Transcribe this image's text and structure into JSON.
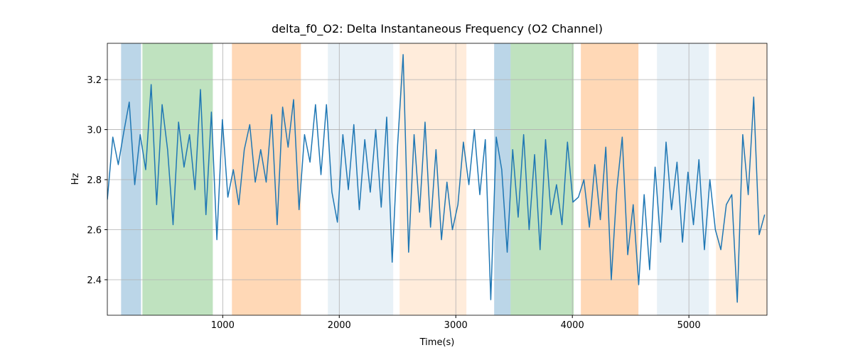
{
  "chart_data": {
    "type": "line",
    "title": "delta_f0_O2: Delta Instantaneous Frequency (O2 Channel)",
    "x_label": "Time(s)",
    "y_label": "Hz",
    "xlim": [
      10,
      5670
    ],
    "ylim": [
      2.258,
      3.345
    ],
    "xticks": [
      1000,
      2000,
      3000,
      4000,
      5000
    ],
    "yticks": [
      2.4,
      2.6,
      2.8,
      {
        "value": 3,
        "label": "3.0"
      },
      3.2
    ],
    "grid": true,
    "spans": [
      {
        "start": 128,
        "end": 299,
        "color": "#1f77b4",
        "opacity": 0.3
      },
      {
        "start": 311,
        "end": 915,
        "color": "#2ca02c",
        "opacity": 0.3
      },
      {
        "start": 1079,
        "end": 1671,
        "color": "#ff7f0e",
        "opacity": 0.3
      },
      {
        "start": 1902,
        "end": 2463,
        "color": "#1f77b4",
        "opacity": 0.1
      },
      {
        "start": 2518,
        "end": 3091,
        "color": "#ff7f0e",
        "opacity": 0.15
      },
      {
        "start": 3329,
        "end": 3470,
        "color": "#1f77b4",
        "opacity": 0.3
      },
      {
        "start": 3470,
        "end": 4012,
        "color": "#2ca02c",
        "opacity": 0.3
      },
      {
        "start": 4073,
        "end": 4567,
        "color": "#ff7f0e",
        "opacity": 0.3
      },
      {
        "start": 4726,
        "end": 5171,
        "color": "#1f77b4",
        "opacity": 0.1
      },
      {
        "start": 5232,
        "end": 5671,
        "color": "#ff7f0e",
        "opacity": 0.15
      }
    ],
    "x": [
      10,
      57,
      104,
      151,
      198,
      245,
      292,
      339,
      386,
      433,
      480,
      527,
      574,
      621,
      668,
      715,
      762,
      809,
      856,
      903,
      950,
      997,
      1044,
      1091,
      1138,
      1185,
      1232,
      1279,
      1326,
      1373,
      1420,
      1467,
      1514,
      1561,
      1608,
      1655,
      1702,
      1749,
      1796,
      1843,
      1890,
      1937,
      1984,
      2031,
      2078,
      2125,
      2172,
      2219,
      2266,
      2313,
      2360,
      2407,
      2454,
      2501,
      2548,
      2595,
      2642,
      2689,
      2736,
      2783,
      2830,
      2877,
      2924,
      2971,
      3018,
      3065,
      3112,
      3159,
      3206,
      3253,
      3300,
      3347,
      3394,
      3441,
      3488,
      3535,
      3582,
      3629,
      3676,
      3723,
      3770,
      3817,
      3864,
      3911,
      3958,
      4005,
      4052,
      4099,
      4146,
      4193,
      4240,
      4287,
      4334,
      4381,
      4428,
      4475,
      4522,
      4569,
      4616,
      4663,
      4710,
      4757,
      4804,
      4851,
      4898,
      4945,
      4992,
      5039,
      5086,
      5133,
      5180,
      5227,
      5274,
      5321,
      5368,
      5415,
      5462,
      5509,
      5556,
      5603,
      5650
    ],
    "series": [
      {
        "color": "#1f77b4",
        "values": [
          2.72,
          2.97,
          2.86,
          2.99,
          3.11,
          2.78,
          2.98,
          2.84,
          3.18,
          2.7,
          3.1,
          2.92,
          2.62,
          3.03,
          2.85,
          2.98,
          2.76,
          3.16,
          2.66,
          3.07,
          2.56,
          3.04,
          2.73,
          2.84,
          2.7,
          2.92,
          3.02,
          2.79,
          2.92,
          2.79,
          3.06,
          2.62,
          3.09,
          2.93,
          3.12,
          2.68,
          2.98,
          2.87,
          3.1,
          2.82,
          3.1,
          2.75,
          2.63,
          2.98,
          2.76,
          3.02,
          2.68,
          2.96,
          2.75,
          3.0,
          2.69,
          3.05,
          2.47,
          2.94,
          3.3,
          2.51,
          2.98,
          2.67,
          3.03,
          2.61,
          2.92,
          2.56,
          2.79,
          2.6,
          2.7,
          2.95,
          2.78,
          3.0,
          2.74,
          2.96,
          2.32,
          2.97,
          2.84,
          2.51,
          2.92,
          2.65,
          2.98,
          2.6,
          2.9,
          2.52,
          2.96,
          2.66,
          2.78,
          2.62,
          2.95,
          2.71,
          2.73,
          2.8,
          2.61,
          2.86,
          2.64,
          2.93,
          2.4,
          2.76,
          2.97,
          2.5,
          2.7,
          2.38,
          2.74,
          2.44,
          2.85,
          2.55,
          2.95,
          2.68,
          2.87,
          2.55,
          2.83,
          2.62,
          2.88,
          2.52,
          2.8,
          2.6,
          2.52,
          2.7,
          2.74,
          2.31,
          2.98,
          2.74,
          3.13,
          2.58,
          2.66
        ]
      }
    ]
  }
}
